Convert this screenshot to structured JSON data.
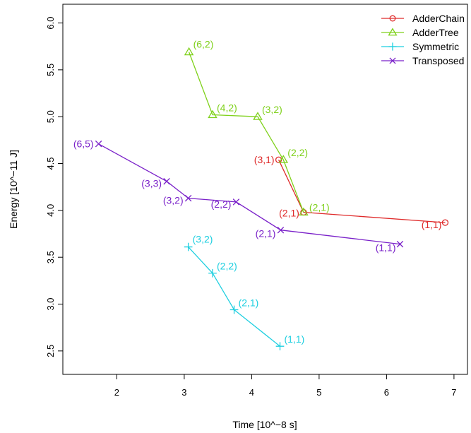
{
  "chart_data": {
    "type": "line",
    "xlabel": "Time [10^−8 s]",
    "ylabel": "Energy [10^−11 J]",
    "xlim": [
      1.2,
      7.2
    ],
    "ylim": [
      2.25,
      6.2
    ],
    "xticks": [
      2,
      3,
      4,
      5,
      6,
      7
    ],
    "yticks": [
      2.5,
      3.0,
      3.5,
      4.0,
      4.5,
      5.0,
      5.5,
      6.0
    ],
    "ytick_labels": [
      "2.5",
      "3.0",
      "3.5",
      "4.0",
      "4.5",
      "5.0",
      "5.5",
      "6.0"
    ],
    "legend_position": "top-right",
    "series": [
      {
        "name": "AdderChain",
        "color": "#df2a2a",
        "marker": "circle",
        "points": [
          {
            "x": 4.4,
            "y": 4.54,
            "label": "(3,1)"
          },
          {
            "x": 4.77,
            "y": 3.98,
            "label": "(2,1)"
          },
          {
            "x": 6.87,
            "y": 3.87,
            "label": "(1,1)"
          }
        ]
      },
      {
        "name": "AdderTree",
        "color": "#7fd11b",
        "marker": "triangle",
        "points": [
          {
            "x": 3.07,
            "y": 5.69,
            "label": "(6,2)"
          },
          {
            "x": 3.42,
            "y": 5.02,
            "label": "(4,2)"
          },
          {
            "x": 4.09,
            "y": 5.0,
            "label": "(3,2)"
          },
          {
            "x": 4.47,
            "y": 4.54,
            "label": "(2,2)"
          },
          {
            "x": 4.77,
            "y": 3.98,
            "label": "(2,1)"
          }
        ]
      },
      {
        "name": "Symmetric",
        "color": "#1ecfe0",
        "marker": "plus",
        "points": [
          {
            "x": 3.06,
            "y": 3.61,
            "label": "(3,2)"
          },
          {
            "x": 3.42,
            "y": 3.33,
            "label": "(2,2)"
          },
          {
            "x": 3.74,
            "y": 2.94,
            "label": "(2,1)"
          },
          {
            "x": 4.42,
            "y": 2.55,
            "label": "(1,1)"
          }
        ]
      },
      {
        "name": "Transposed",
        "color": "#7a21c9",
        "marker": "x",
        "points": [
          {
            "x": 1.73,
            "y": 4.71,
            "label": "(6,5)"
          },
          {
            "x": 2.74,
            "y": 4.31,
            "label": "(3,3)"
          },
          {
            "x": 3.06,
            "y": 4.13,
            "label": "(3,2)"
          },
          {
            "x": 3.77,
            "y": 4.09,
            "label": "(2,2)"
          },
          {
            "x": 4.43,
            "y": 3.79,
            "label": "(2,1)"
          },
          {
            "x": 6.2,
            "y": 3.64,
            "label": "(1,1)"
          }
        ]
      }
    ]
  }
}
